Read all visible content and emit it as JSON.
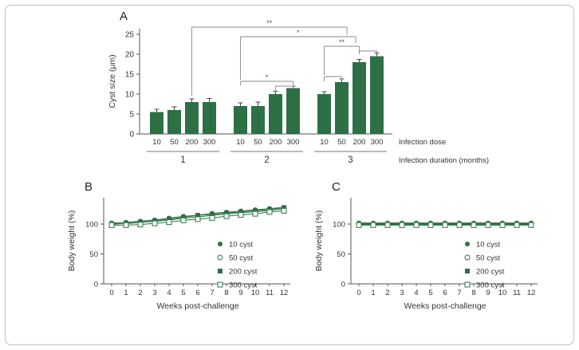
{
  "figure": {
    "background": "#ffffff",
    "frame_border_color": "#b7c7b7",
    "accent_green": "#2e7046"
  },
  "panels": {
    "a": {
      "label": "A"
    },
    "b": {
      "label": "B"
    },
    "c": {
      "label": "C"
    }
  },
  "chart_data": [
    {
      "panel": "A",
      "type": "bar",
      "ylabel": "Cyst size (μm)",
      "ylim": [
        0,
        25
      ],
      "yticks": [
        0,
        5,
        10,
        15,
        20,
        25
      ],
      "dose_axis_label": "Infection dose",
      "duration_axis_label": "Infection duration (months)",
      "bar_color": "#2e7046",
      "groups": [
        {
          "duration": "1",
          "doses": [
            "10",
            "50",
            "200",
            "300"
          ],
          "values": [
            5.5,
            6,
            8,
            8
          ],
          "errors": [
            0.7,
            0.8,
            0.8,
            0.9
          ]
        },
        {
          "duration": "2",
          "doses": [
            "10",
            "50",
            "200",
            "300"
          ],
          "values": [
            7,
            7,
            10,
            11.5
          ],
          "errors": [
            0.8,
            1.0,
            0.7,
            0.5
          ]
        },
        {
          "duration": "3",
          "doses": [
            "10",
            "50",
            "200",
            "300"
          ],
          "values": [
            10,
            13,
            18,
            19.5
          ],
          "errors": [
            0.6,
            0.8,
            0.7,
            0.8
          ]
        }
      ],
      "significance": [
        {
          "label": "**",
          "from": 2,
          "to": 9.3,
          "y": 26,
          "dropLeft": 86,
          "dropRight": 10
        },
        {
          "label": "*",
          "from": 4,
          "to": 9.8,
          "y": 38,
          "dropLeft": 54,
          "dropRight": 8
        },
        {
          "label": "**",
          "from": 8,
          "to": 10,
          "y": 50,
          "dropLeft": 36,
          "dropRight": 8
        },
        {
          "label": "*",
          "from": 4,
          "to": 7,
          "y": 94,
          "dropLeft": 5,
          "dropRight": 5
        },
        {
          "label": "",
          "from": 6,
          "to": 7,
          "y": 100,
          "dropLeft": 8,
          "dropRight": 2
        },
        {
          "label": "",
          "from": 8,
          "to": 9,
          "y": 88,
          "dropLeft": 6,
          "dropRight": 4
        },
        {
          "label": "",
          "from": 10,
          "to": 11,
          "y": 56,
          "dropLeft": 4,
          "dropRight": 3
        }
      ]
    },
    {
      "panel": "B",
      "type": "line",
      "xlabel": "Weeks post-challenge",
      "ylabel": "Body weight (%)",
      "x": [
        0,
        1,
        2,
        3,
        4,
        5,
        6,
        7,
        8,
        9,
        10,
        11,
        12
      ],
      "yticks": [
        0,
        50,
        100
      ],
      "ylim": [
        0,
        140
      ],
      "color": "#2e7046",
      "legend_position": "right-center",
      "series": [
        {
          "name": "10 cyst",
          "marker": "circle-filled",
          "error": 3,
          "values": [
            100,
            101,
            103,
            105,
            108,
            111,
            113,
            116,
            118,
            120,
            122,
            124,
            126
          ]
        },
        {
          "name": "50 cyst",
          "marker": "circle-open",
          "error": 3,
          "values": [
            100,
            100,
            102,
            104,
            106,
            109,
            111,
            114,
            116,
            118,
            120,
            122,
            125
          ]
        },
        {
          "name": "200 cyst",
          "marker": "square-filled",
          "error": 3,
          "values": [
            100,
            102,
            104,
            106,
            109,
            112,
            115,
            117,
            119,
            121,
            123,
            125,
            128
          ]
        },
        {
          "name": "300 cyst",
          "marker": "square-open",
          "error": 3,
          "values": [
            100,
            100,
            101,
            103,
            105,
            108,
            110,
            112,
            115,
            117,
            119,
            122,
            124
          ]
        }
      ]
    },
    {
      "panel": "C",
      "type": "line",
      "xlabel": "Weeks post-challenge",
      "ylabel": "Body weight (%)",
      "x": [
        0,
        1,
        2,
        3,
        4,
        5,
        6,
        7,
        8,
        9,
        10,
        11,
        12
      ],
      "yticks": [
        0,
        50,
        100
      ],
      "ylim": [
        0,
        140
      ],
      "color": "#2e7046",
      "legend_position": "right-center",
      "series": [
        {
          "name": "10 cyst",
          "marker": "circle-filled",
          "error": 1.5,
          "values": [
            100,
            100,
            100,
            100,
            100,
            100,
            100,
            100,
            100,
            100,
            100,
            100,
            100
          ]
        },
        {
          "name": "50 cyst",
          "marker": "circle-open",
          "error": 1.5,
          "values": [
            100,
            100,
            100,
            100,
            100,
            100,
            100,
            100,
            100,
            100,
            100,
            100,
            100
          ]
        },
        {
          "name": "200 cyst",
          "marker": "square-filled",
          "error": 1.5,
          "values": [
            100,
            100,
            100,
            100,
            100,
            100,
            100,
            100,
            100,
            100,
            100,
            100,
            100
          ]
        },
        {
          "name": "300 cyst",
          "marker": "square-open",
          "error": 1.5,
          "values": [
            100,
            100,
            100,
            100,
            100,
            100,
            100,
            100,
            100,
            100,
            100,
            100,
            100
          ]
        }
      ]
    }
  ]
}
